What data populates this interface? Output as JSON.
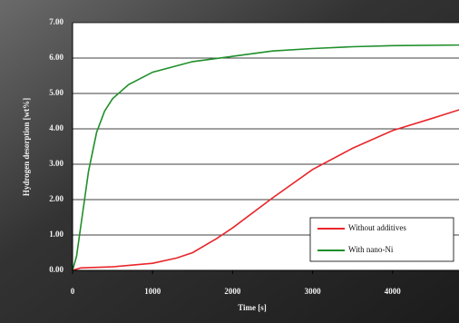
{
  "chart_data": {
    "type": "line",
    "xlabel": "Time [s]",
    "ylabel": "Hydrogen desorption [wt%]",
    "xlim": [
      0,
      5000
    ],
    "ylim": [
      0,
      7
    ],
    "xticks": [
      0,
      1000,
      2000,
      3000,
      4000
    ],
    "yticks": [
      {
        "value": 0,
        "label": "0.00"
      },
      {
        "value": 1,
        "label": "1.00"
      },
      {
        "value": 2,
        "label": "2.00"
      },
      {
        "value": 3,
        "label": "3.00"
      },
      {
        "value": 4,
        "label": "4.00"
      },
      {
        "value": 5,
        "label": "5.00"
      },
      {
        "value": 6,
        "label": "6.00"
      },
      {
        "value": 7,
        "label": "7.00"
      }
    ],
    "grid": true,
    "legend": "lower right",
    "series": [
      {
        "name": "Without additives",
        "color": "#e8262b",
        "x": [
          0,
          100,
          500,
          1000,
          1300,
          1500,
          1800,
          2000,
          2500,
          3000,
          3500,
          4000,
          4500,
          4850
        ],
        "values": [
          0,
          0.07,
          0.1,
          0.2,
          0.35,
          0.5,
          0.9,
          1.2,
          2.05,
          2.85,
          3.45,
          3.95,
          4.3,
          4.55
        ]
      },
      {
        "name": "With nano-Ni",
        "color": "#1f8f2a",
        "x": [
          0,
          50,
          100,
          200,
          300,
          400,
          500,
          700,
          1000,
          1500,
          2000,
          2500,
          3000,
          3500,
          4000,
          4850
        ],
        "values": [
          0,
          0.4,
          1.2,
          2.8,
          3.9,
          4.5,
          4.85,
          5.25,
          5.6,
          5.9,
          6.05,
          6.2,
          6.27,
          6.32,
          6.35,
          6.37
        ]
      }
    ]
  }
}
